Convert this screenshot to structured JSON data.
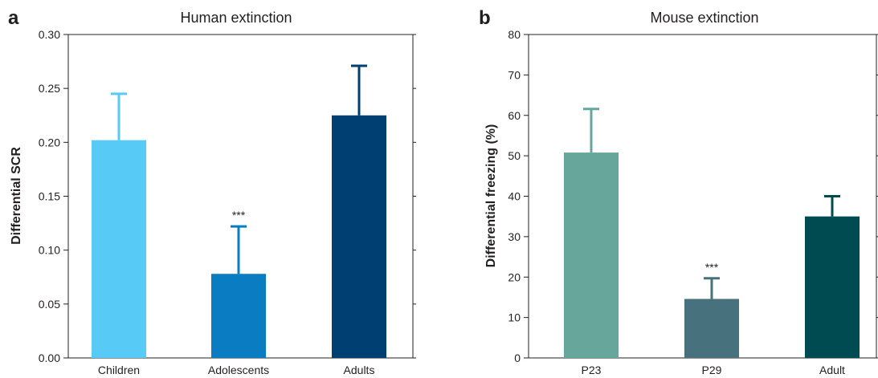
{
  "chart_data": [
    {
      "type": "bar",
      "panel_label": "a",
      "title": "Human extinction",
      "xlabel": "",
      "ylabel": "Differential SCR",
      "ylim": [
        0,
        0.3
      ],
      "yticks": [
        "0.00",
        "0.05",
        "0.10",
        "0.15",
        "0.20",
        "0.25",
        "0.30"
      ],
      "categories": [
        "Children",
        "Adolescents",
        "Adults"
      ],
      "values": [
        0.202,
        0.078,
        0.225
      ],
      "errors": [
        0.043,
        0.044,
        0.046
      ],
      "colors": [
        "#57cbf5",
        "#0a7dc2",
        "#003f72"
      ],
      "error_colors": [
        "#57cbf5",
        "#0a7dc2",
        "#003f72"
      ],
      "annotations": [
        "",
        "***",
        ""
      ],
      "grid": false
    },
    {
      "type": "bar",
      "panel_label": "b",
      "title": "Mouse extinction",
      "xlabel": "",
      "ylabel": "Differential freezing (%)",
      "ylim": [
        0,
        80
      ],
      "yticks": [
        "0",
        "10",
        "20",
        "30",
        "40",
        "50",
        "60",
        "70",
        "80"
      ],
      "categories": [
        "P23",
        "P29",
        "Adult"
      ],
      "values": [
        50.8,
        14.6,
        35.0
      ],
      "errors": [
        10.8,
        5.1,
        5.0
      ],
      "colors": [
        "#67a69b",
        "#46717d",
        "#004b51"
      ],
      "error_colors": [
        "#67a69b",
        "#46717d",
        "#004b51"
      ],
      "annotations": [
        "",
        "***",
        ""
      ],
      "grid": false
    }
  ]
}
